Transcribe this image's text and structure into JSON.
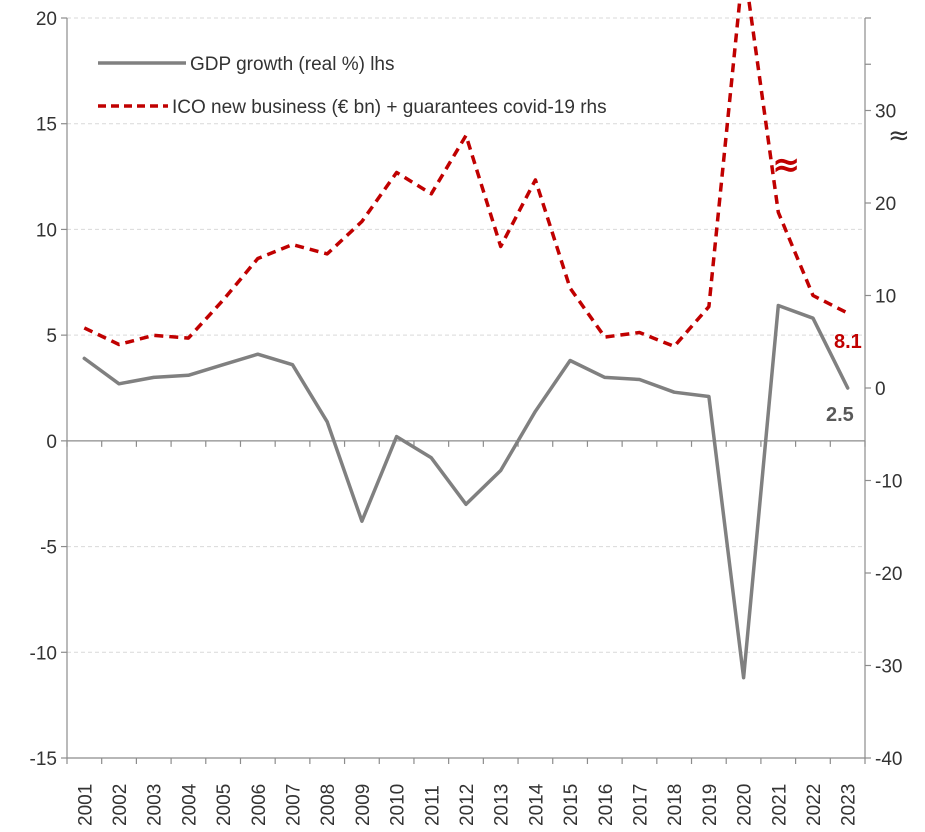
{
  "chart_data": {
    "type": "line",
    "title": "",
    "x": [
      "2001",
      "2002",
      "2003",
      "2004",
      "2005",
      "2006",
      "2007",
      "2008",
      "2009",
      "2010",
      "2011",
      "2012",
      "2013",
      "2014",
      "2015",
      "2016",
      "2017",
      "2018",
      "2019",
      "2020",
      "2021",
      "2022",
      "2023"
    ],
    "series": [
      {
        "name": "GDP growth (real %) lhs",
        "axis": "left",
        "color": "#808080",
        "style": "solid",
        "values": [
          3.9,
          2.7,
          3.0,
          3.1,
          3.6,
          4.1,
          3.6,
          0.9,
          -3.8,
          0.2,
          -0.8,
          -3.0,
          -1.4,
          1.4,
          3.8,
          3.0,
          2.9,
          2.3,
          2.1,
          -11.2,
          6.4,
          5.8,
          2.5
        ]
      },
      {
        "name": "ICO new business (€ bn) + guarantees covid-19 rhs",
        "axis": "right",
        "color": "#c00000",
        "style": "dashed",
        "values": [
          6.5,
          4.7,
          5.7,
          5.4,
          9.5,
          14.0,
          15.5,
          14.5,
          18.0,
          23.3,
          21.0,
          27.3,
          15.3,
          22.5,
          10.8,
          5.5,
          6.0,
          4.5,
          8.8,
          46.0,
          19.0,
          10.0,
          8.1
        ]
      }
    ],
    "y_left": {
      "min": -15,
      "max": 20,
      "ticks": [
        "-15",
        "-10",
        "-5",
        "0",
        "5",
        "10",
        "15",
        "20"
      ]
    },
    "y_right": {
      "min": -40,
      "max": 40,
      "ticks": [
        "-40",
        "-30",
        "-20",
        "-10",
        "0",
        "10",
        "20",
        "30"
      ]
    },
    "grid": true,
    "legend_position": "top-left",
    "annotations": {
      "gdp_end_label": "2.5",
      "ico_end_label": "8.1",
      "axis_break_symbol": "≈",
      "series_break_symbol": "≈"
    }
  }
}
